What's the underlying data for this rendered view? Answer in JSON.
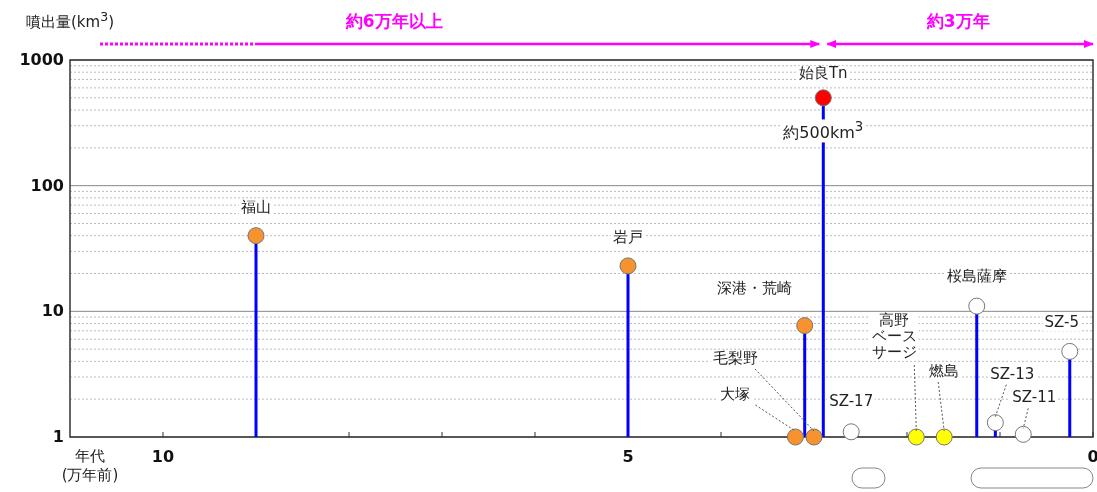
{
  "chart_data": {
    "type": "lollipop",
    "ylabel": "噴出量(km$^{3}$)",
    "xlabel": "年代(万年前)",
    "log": "y",
    "grid": "y",
    "marker": "circle",
    "xlim": [
      11,
      0
    ],
    "xticks": [
      {
        "value": 10,
        "label": "10"
      },
      {
        "value": 9,
        "label": null
      },
      {
        "value": 8,
        "label": null
      },
      {
        "value": 7,
        "label": null
      },
      {
        "value": 6,
        "label": null
      },
      {
        "value": 5,
        "label": "5"
      },
      {
        "value": 4,
        "label": null
      },
      {
        "value": 3,
        "label": null
      },
      {
        "value": 2,
        "label": null
      },
      {
        "value": 1,
        "label": null
      },
      {
        "value": 0,
        "label": "0"
      }
    ],
    "ylim": [
      1,
      1000
    ],
    "yticks": [
      1,
      10,
      100,
      1000
    ],
    "series": [
      {
        "color": "#0000ff",
        "x": [
          9.0,
          5.0,
          3.2,
          3.1,
          3.0,
          2.9,
          2.6,
          1.9,
          1.6,
          1.25,
          1.05,
          0.75,
          0.25
        ],
        "values": [
          40,
          23,
          1,
          7.7,
          1,
          500,
          1.1,
          1,
          1,
          11,
          1.3,
          1.05,
          4.8
        ],
        "colors": [
          "#f7932f",
          "#f7932f",
          "#f7932f",
          "#f7932f",
          "#f7932f",
          "#ff0000",
          "#ffffff",
          "#ffff00",
          "#ffff00",
          "#ffffff",
          "#ffffff",
          "#ffffff",
          "#ffffff"
        ],
        "value_labels": [
          null,
          null,
          null,
          null,
          null,
          "約500km$^{3}$",
          null,
          null,
          null,
          null,
          null,
          null,
          null
        ]
      }
    ],
    "annotations": [
      {
        "text": "福山",
        "x": 9.0,
        "y": 40
      },
      {
        "text": "岩戸",
        "x": 5.0,
        "y": 23
      },
      {
        "text": "大塚",
        "x": 3.2,
        "y": 1
      },
      {
        "text": "深港・荒崎",
        "x": 3.1,
        "y": 7.7
      },
      {
        "text": "毛梨野",
        "x": 3.0,
        "y": 1
      },
      {
        "text": "始良Tn",
        "x": 2.9,
        "y": 500
      },
      {
        "text": "SZ-17",
        "x": 2.6,
        "y": 1.1
      },
      {
        "text": "高野ベースサージ",
        "x": 1.9,
        "y": 1
      },
      {
        "text": "燃島",
        "x": 1.6,
        "y": 1
      },
      {
        "text": "桜島薩摩",
        "x": 1.25,
        "y": 11
      },
      {
        "text": "SZ-13",
        "x": 1.05,
        "y": 1.3
      },
      {
        "text": "SZ-11",
        "x": 0.75,
        "y": 1.05
      },
      {
        "text": "SZ-5",
        "x": 0.25,
        "y": 4.8
      },
      "約6万年以上",
      "約3万年"
    ]
  }
}
